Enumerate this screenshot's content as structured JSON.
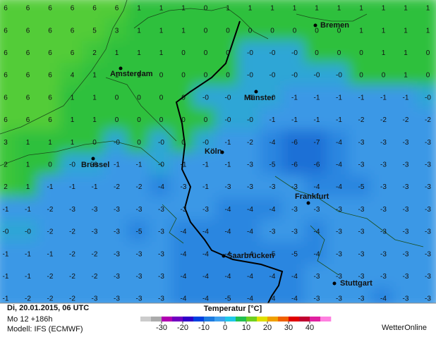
{
  "grid": {
    "rows": [
      [
        "6",
        "6",
        "6",
        "6",
        "6",
        "6",
        "1",
        "1",
        "1",
        "0",
        "1",
        "1",
        "1",
        "1",
        "1",
        "1",
        "1",
        "1",
        "1",
        "1"
      ],
      [
        "6",
        "6",
        "6",
        "6",
        "5",
        "3",
        "1",
        "1",
        "1",
        "0",
        "0",
        "0",
        "0",
        "0",
        "0",
        "0",
        "1",
        "1",
        "1",
        "1"
      ],
      [
        "6",
        "6",
        "6",
        "6",
        "2",
        "1",
        "1",
        "1",
        "0",
        "0",
        "0",
        "-0",
        "-0",
        "-0",
        "0",
        "0",
        "0",
        "1",
        "1",
        "0"
      ],
      [
        "6",
        "6",
        "6",
        "4",
        "1",
        "1",
        "1",
        "0",
        "0",
        "0",
        "0",
        "-0",
        "-0",
        "-0",
        "-0",
        "-0",
        "0",
        "0",
        "1",
        "0"
      ],
      [
        "6",
        "6",
        "6",
        "1",
        "1",
        "0",
        "0",
        "0",
        "0",
        "-0",
        "-0",
        "-0",
        "-0",
        "-1",
        "-1",
        "-1",
        "-1",
        "-1",
        "-1",
        "-0"
      ],
      [
        "6",
        "6",
        "6",
        "1",
        "1",
        "0",
        "0",
        "0",
        "0",
        "0",
        "-0",
        "-0",
        "-1",
        "-1",
        "-1",
        "-1",
        "-2",
        "-2",
        "-2",
        "-2"
      ],
      [
        "3",
        "1",
        "1",
        "1",
        "0",
        "-0",
        "0",
        "-0",
        "0",
        "-0",
        "-1",
        "-2",
        "-4",
        "-6",
        "-7",
        "-4",
        "-3",
        "-3",
        "-3",
        "-3"
      ],
      [
        "2",
        "1",
        "0",
        "-0",
        "-0",
        "-1",
        "-1",
        "-0",
        "-1",
        "-1",
        "-1",
        "-3",
        "-5",
        "-6",
        "-6",
        "-4",
        "-3",
        "-3",
        "-3",
        "-3"
      ],
      [
        "2",
        "1",
        "-1",
        "-1",
        "-1",
        "-2",
        "-2",
        "-4",
        "-3",
        "-1",
        "-3",
        "-3",
        "-3",
        "-3",
        "-4",
        "-4",
        "-5",
        "-3",
        "-3",
        "-3"
      ],
      [
        "-1",
        "-1",
        "-2",
        "-3",
        "-3",
        "-3",
        "-3",
        "-3",
        "-3",
        "-3",
        "-4",
        "-4",
        "-4",
        "-3",
        "-3",
        "-3",
        "-3",
        "-3",
        "-3",
        "-3"
      ],
      [
        "-0",
        "-0",
        "-2",
        "-2",
        "-3",
        "-3",
        "-5",
        "-3",
        "-4",
        "-4",
        "-4",
        "-4",
        "-3",
        "-3",
        "-4",
        "-3",
        "-3",
        "-3",
        "-3",
        "-3"
      ],
      [
        "-1",
        "-1",
        "-1",
        "-2",
        "-2",
        "-3",
        "-3",
        "-3",
        "-4",
        "-4",
        "-4",
        "-4",
        "-5",
        "-5",
        "-4",
        "-3",
        "-3",
        "-3",
        "-3",
        "-3"
      ],
      [
        "-1",
        "-1",
        "-2",
        "-2",
        "-2",
        "-3",
        "-3",
        "-3",
        "-4",
        "-4",
        "-4",
        "-4",
        "-4",
        "-4",
        "-3",
        "-3",
        "-3",
        "-3",
        "-3",
        "-3"
      ],
      [
        "-1",
        "-2",
        "-2",
        "-2",
        "-3",
        "-3",
        "-3",
        "-3",
        "-4",
        "-4",
        "-5",
        "-4",
        "-4",
        "-4",
        "-3",
        "-3",
        "-3",
        "-4",
        "-3",
        "-3"
      ]
    ]
  },
  "cities": [
    "Bremen",
    "Amsterdam",
    "Münster",
    "Köln",
    "Brüssel",
    "Frankfurt",
    "Saarbrücken",
    "Stuttgart"
  ],
  "footer": {
    "date": "Di, 20.01.2015, 06 UTC",
    "run": "Mo 12 +186h",
    "model": "Modell: IFS (ECMWF)",
    "legend_title": "Temperatur [°C]",
    "legend_ticks": [
      -30,
      -20,
      -10,
      0,
      10,
      20,
      30,
      40
    ],
    "legend_colors": [
      "#cccccc",
      "#aaaaaa",
      "#b000b0",
      "#7000c0",
      "#3000c8",
      "#0040e0",
      "#1d7be0",
      "#3da0ee",
      "#20c8e8",
      "#22c050",
      "#70d020",
      "#e0e000",
      "#f0a000",
      "#f06000",
      "#e00000",
      "#c00030",
      "#e020a0",
      "#ff80e0"
    ],
    "brand": "WetterOnline"
  }
}
